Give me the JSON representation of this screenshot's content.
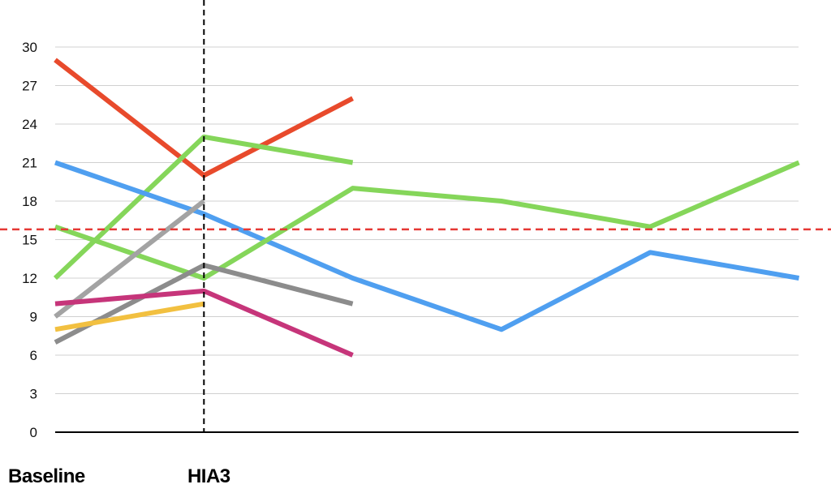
{
  "chart_data": {
    "type": "line",
    "title": "",
    "xlabel": "",
    "ylabel": "",
    "ylim": [
      0,
      30
    ],
    "y_ticks": [
      0,
      3,
      6,
      9,
      12,
      15,
      18,
      21,
      24,
      27,
      30
    ],
    "x": [
      0,
      1,
      2,
      3,
      4,
      5
    ],
    "x_tick_labels": [
      "Baseline",
      "HIA3",
      "",
      "",
      "",
      ""
    ],
    "grid": true,
    "legend": "none",
    "reference_lines": [
      {
        "orientation": "horizontal",
        "value": 15.8,
        "color": "#e53935",
        "style": "dashed"
      },
      {
        "orientation": "vertical",
        "x": 1,
        "color": "#000000",
        "style": "dashed"
      }
    ],
    "series": [
      {
        "color": "#e84a2c",
        "values": [
          29,
          20,
          26,
          null,
          null,
          null
        ]
      },
      {
        "color": "#85d65a",
        "values": [
          12,
          23,
          21,
          null,
          null,
          null
        ]
      },
      {
        "color": "#4f9ff0",
        "values": [
          21,
          17,
          12,
          8,
          14,
          12
        ]
      },
      {
        "color": "#85d65a",
        "values": [
          16,
          12,
          19,
          18,
          16,
          21
        ]
      },
      {
        "color": "#a3a3a3",
        "values": [
          9,
          18,
          null,
          null,
          null,
          null
        ]
      },
      {
        "color": "#8c8c8c",
        "values": [
          7,
          13,
          10,
          null,
          null,
          null
        ]
      },
      {
        "color": "#c6357a",
        "values": [
          10,
          11,
          6,
          null,
          null,
          null
        ]
      },
      {
        "color": "#f2c040",
        "values": [
          8,
          10,
          null,
          null,
          null,
          null
        ]
      }
    ]
  }
}
